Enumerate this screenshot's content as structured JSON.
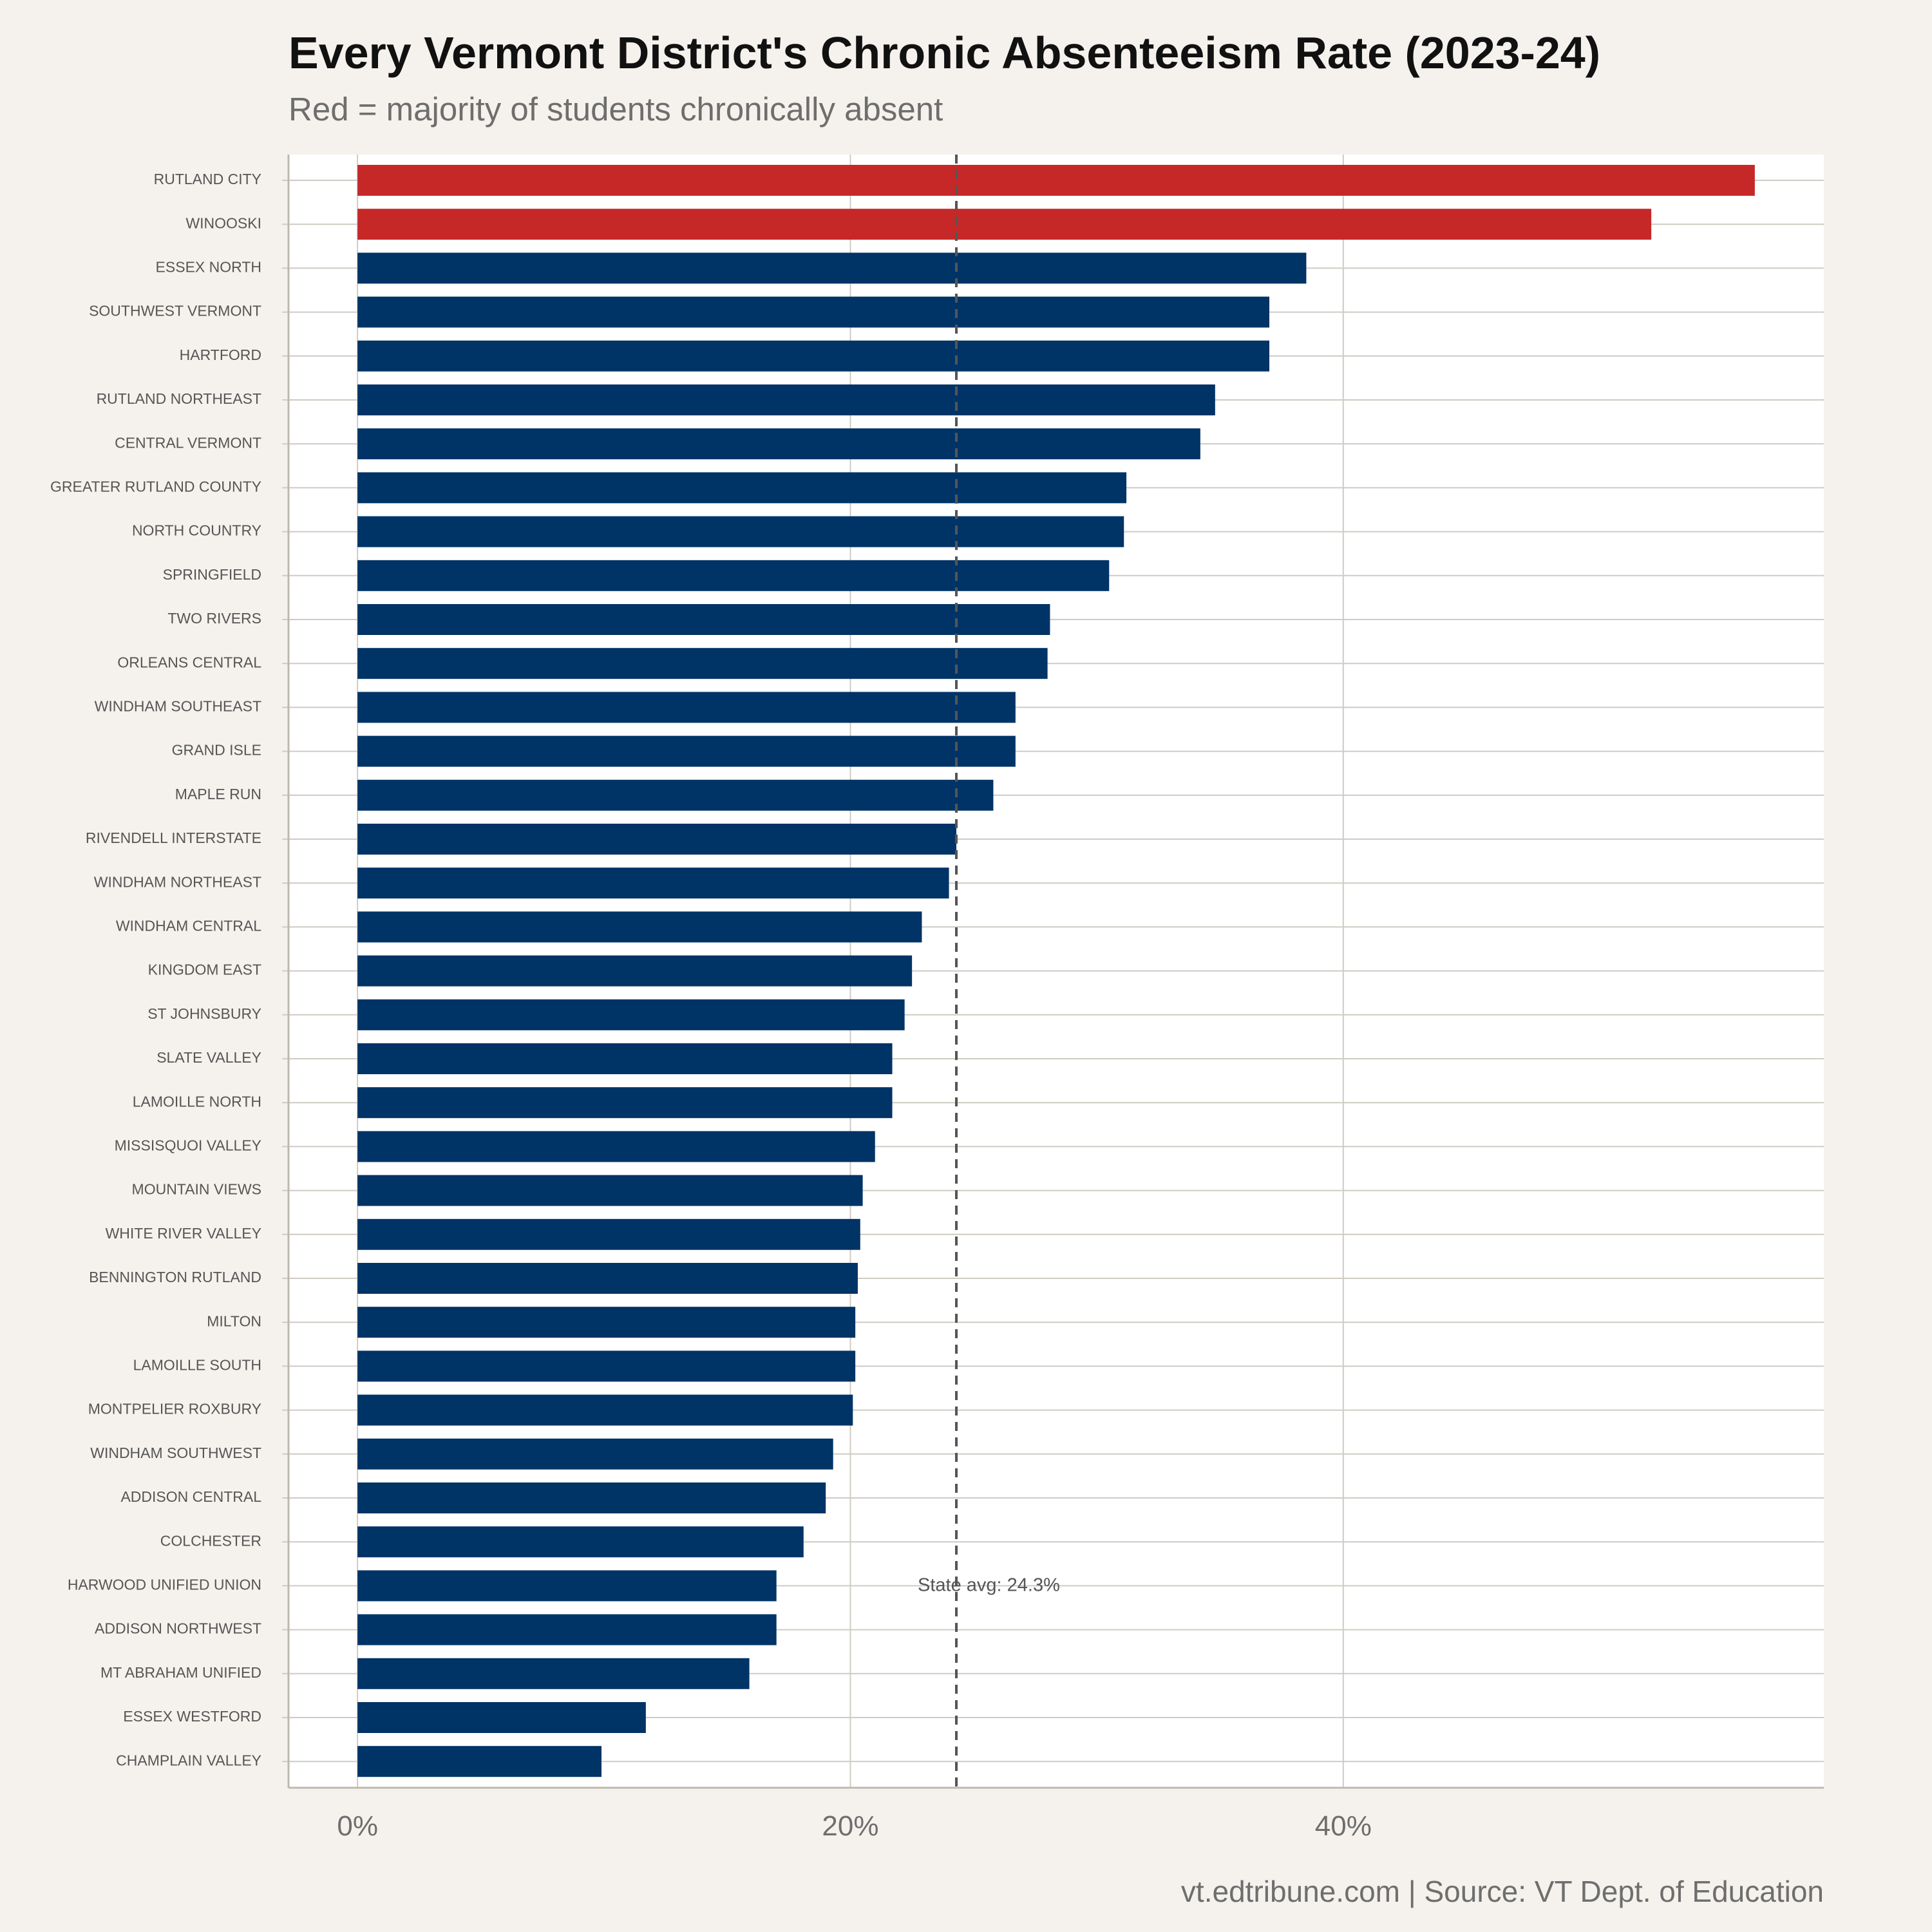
{
  "chart_data": {
    "type": "bar",
    "orientation": "horizontal",
    "title": "Every Vermont District's Chronic Absenteeism Rate (2023-24)",
    "subtitle": "Red = majority of students chronically absent",
    "caption": "vt.edtribune.com | Source: VT Dept. of Education",
    "x_ticks": [
      {
        "value": 0,
        "label": "0%"
      },
      {
        "value": 20,
        "label": "20%"
      },
      {
        "value": 40,
        "label": "40%"
      }
    ],
    "xlim": [
      -2.8,
      59.5
    ],
    "grid": true,
    "colors": {
      "highlight": "#c62828",
      "default": "#003366",
      "reference_line": "#555555"
    },
    "reference_line": {
      "value": 24.3,
      "label": "State avg: 24.3%"
    },
    "categories": [
      "RUTLAND CITY",
      "WINOOSKI",
      "ESSEX NORTH",
      "SOUTHWEST VERMONT",
      "HARTFORD",
      "RUTLAND NORTHEAST",
      "CENTRAL VERMONT",
      "GREATER RUTLAND COUNTY",
      "NORTH COUNTRY",
      "SPRINGFIELD",
      "TWO RIVERS",
      "ORLEANS CENTRAL",
      "WINDHAM SOUTHEAST",
      "GRAND ISLE",
      "MAPLE RUN",
      "RIVENDELL INTERSTATE",
      "WINDHAM NORTHEAST",
      "WINDHAM CENTRAL",
      "KINGDOM EAST",
      "ST JOHNSBURY",
      "SLATE VALLEY",
      "LAMOILLE NORTH",
      "MISSISQUOI VALLEY",
      "MOUNTAIN VIEWS",
      "WHITE RIVER VALLEY",
      "BENNINGTON RUTLAND",
      "MILTON",
      "LAMOILLE SOUTH",
      "MONTPELIER ROXBURY",
      "WINDHAM SOUTHWEST",
      "ADDISON CENTRAL",
      "COLCHESTER",
      "HARWOOD UNIFIED UNION",
      "ADDISON NORTHWEST",
      "MT ABRAHAM UNIFIED",
      "ESSEX WESTFORD",
      "CHAMPLAIN VALLEY"
    ],
    "values": [
      56.7,
      52.5,
      38.5,
      37.0,
      37.0,
      34.8,
      34.2,
      31.2,
      31.1,
      30.5,
      28.1,
      28.0,
      26.7,
      26.7,
      25.8,
      24.3,
      24.0,
      22.9,
      22.5,
      22.2,
      21.7,
      21.7,
      21.0,
      20.5,
      20.4,
      20.3,
      20.2,
      20.2,
      20.1,
      19.3,
      19.0,
      18.1,
      17.0,
      17.0,
      15.9,
      11.7,
      9.9
    ],
    "highlighted": [
      true,
      true,
      false,
      false,
      false,
      false,
      false,
      false,
      false,
      false,
      false,
      false,
      false,
      false,
      false,
      false,
      false,
      false,
      false,
      false,
      false,
      false,
      false,
      false,
      false,
      false,
      false,
      false,
      false,
      false,
      false,
      false,
      false,
      false,
      false,
      false,
      false
    ]
  }
}
